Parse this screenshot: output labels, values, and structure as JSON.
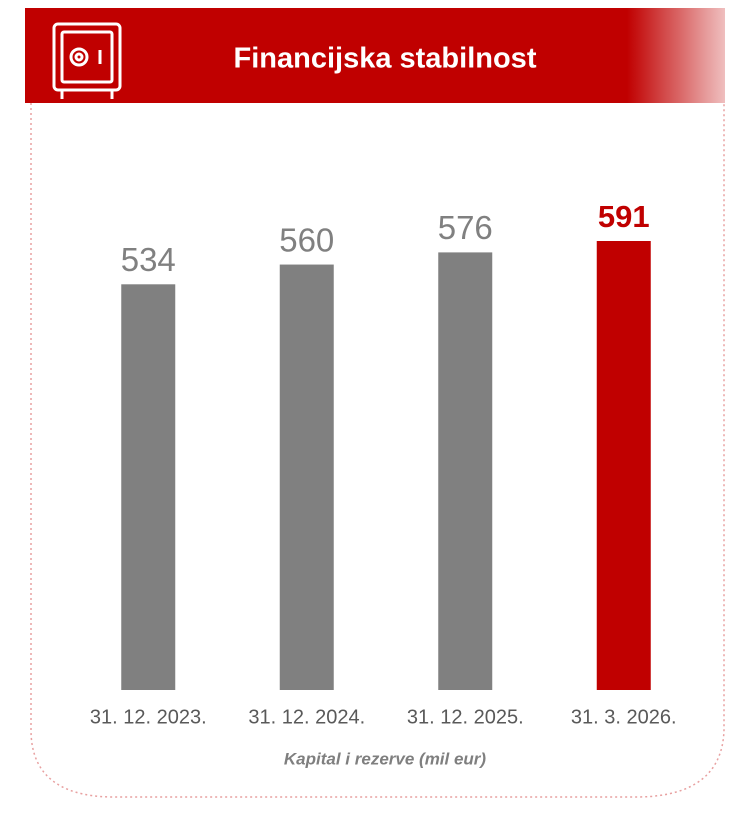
{
  "chart_data": {
    "type": "bar",
    "title": "Financijska stabilnost",
    "categories": [
      "31. 12. 2023.",
      "31. 12. 2024.",
      "31. 12. 2025.",
      "31. 3. 2026."
    ],
    "values": [
      534,
      560,
      576,
      591
    ],
    "colors": [
      "#808080",
      "#808080",
      "#808080",
      "#c00000"
    ],
    "x_label": "Kapital i rezerve (mil eur)"
  }
}
